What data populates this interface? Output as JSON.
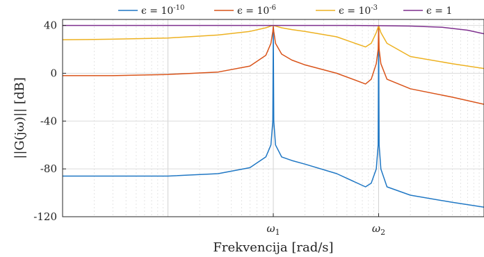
{
  "chart_data": {
    "type": "line",
    "title": "",
    "xlabel": "Frekvencija [rad/s]",
    "ylabel": "||G(jω)|| [dB]",
    "x_scale": "log",
    "xlim": [
      0.01,
      100
    ],
    "ylim": [
      -120,
      45
    ],
    "grid": true,
    "legend_position": "top",
    "y_ticks": [
      40,
      0,
      -40,
      -80,
      -120
    ],
    "y_tick_labels": [
      "40",
      "0",
      "-40",
      "-80",
      "-120"
    ],
    "x_ticks": [
      1,
      10
    ],
    "x_tick_labels": [
      "ω1",
      "ω2"
    ],
    "series": [
      {
        "name": "ϵ = 10^-10",
        "color": "#1f77c4",
        "x": [
          0.01,
          0.03,
          0.1,
          0.3,
          0.6,
          0.85,
          0.95,
          0.99,
          1.0,
          1.01,
          1.05,
          1.2,
          1.5,
          2,
          4,
          7.5,
          8.5,
          9.5,
          9.9,
          10.0,
          10.1,
          10.5,
          12,
          20,
          50,
          100
        ],
        "values": [
          -86,
          -86,
          -86,
          -84,
          -79,
          -70,
          -60,
          -40,
          39,
          -40,
          -60,
          -70,
          -73,
          -76,
          -84,
          -95,
          -92,
          -80,
          -60,
          39,
          -60,
          -80,
          -95,
          -102,
          -108,
          -112
        ]
      },
      {
        "name": "ϵ = 10^-6",
        "color": "#d95319",
        "x": [
          0.01,
          0.03,
          0.1,
          0.3,
          0.6,
          0.85,
          0.95,
          0.99,
          1.0,
          1.01,
          1.05,
          1.2,
          1.5,
          2,
          4,
          7.5,
          8.5,
          9.5,
          9.9,
          10.0,
          10.1,
          10.5,
          12,
          20,
          50,
          100
        ],
        "values": [
          -2,
          -2,
          -1,
          1,
          6,
          15,
          25,
          35,
          39,
          35,
          25,
          16,
          11,
          7,
          0,
          -9,
          -5,
          8,
          20,
          39,
          20,
          8,
          -5,
          -13,
          -20,
          -26
        ]
      },
      {
        "name": "ϵ = 10^-3",
        "color": "#edb120",
        "x": [
          0.01,
          0.03,
          0.1,
          0.3,
          0.6,
          0.85,
          0.95,
          1.0,
          1.05,
          1.2,
          1.5,
          2,
          4,
          7.5,
          8.5,
          9.5,
          10.0,
          10.5,
          12,
          20,
          50,
          100
        ],
        "values": [
          28,
          28.5,
          29.5,
          32,
          35,
          38,
          39.5,
          40,
          39.5,
          38,
          36.5,
          35,
          30.5,
          22,
          25,
          34,
          40,
          34,
          25,
          14,
          8,
          4
        ]
      },
      {
        "name": "ϵ = 1",
        "color": "#7e2f8e",
        "x": [
          0.01,
          0.1,
          1,
          5,
          10,
          20,
          40,
          70,
          100
        ],
        "values": [
          40,
          40,
          40,
          40,
          39.8,
          39.5,
          38.5,
          36,
          33
        ]
      }
    ]
  }
}
